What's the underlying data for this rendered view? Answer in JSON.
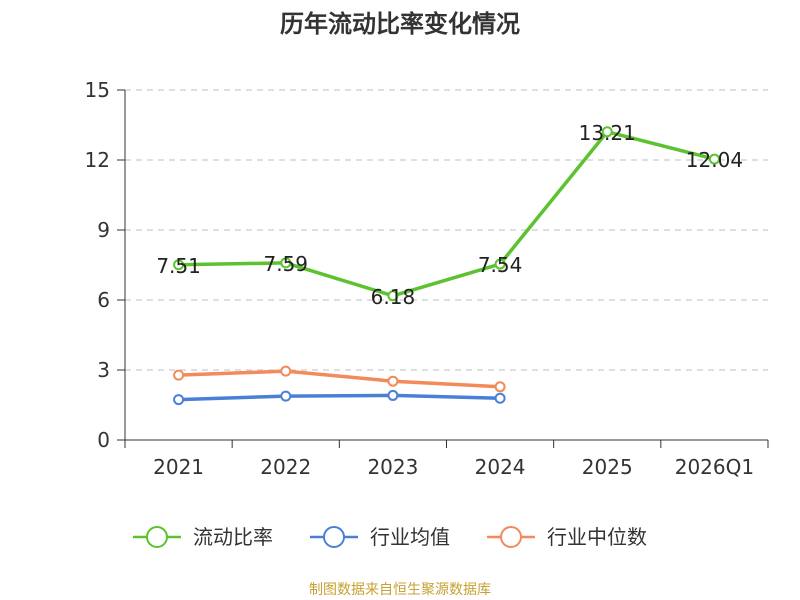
{
  "chart_data": {
    "type": "line",
    "title": "历年流动比率变化情况",
    "xlabel": "",
    "ylabel": "",
    "categories": [
      "2021",
      "2022",
      "2023",
      "2024",
      "2025",
      "2026Q1"
    ],
    "ylim": [
      0,
      15
    ],
    "yticks": [
      0,
      3,
      6,
      9,
      12,
      15
    ],
    "grid": true,
    "legend_position": "bottom",
    "series": [
      {
        "name": "流动比率",
        "color": "#5cc22f",
        "values": [
          7.51,
          7.59,
          6.18,
          7.54,
          13.21,
          12.04
        ],
        "labels": [
          "7.51",
          "7.59",
          "6.18",
          "7.54",
          "13.21",
          "12.04"
        ]
      },
      {
        "name": "行业均值",
        "color": "#4a7fd8",
        "values": [
          1.73,
          1.88,
          1.91,
          1.79,
          null,
          null
        ]
      },
      {
        "name": "行业中位数",
        "color": "#f28a5a",
        "values": [
          2.78,
          2.95,
          2.52,
          2.28,
          null,
          null
        ]
      }
    ],
    "source": "制图数据来自恒生聚源数据库"
  }
}
